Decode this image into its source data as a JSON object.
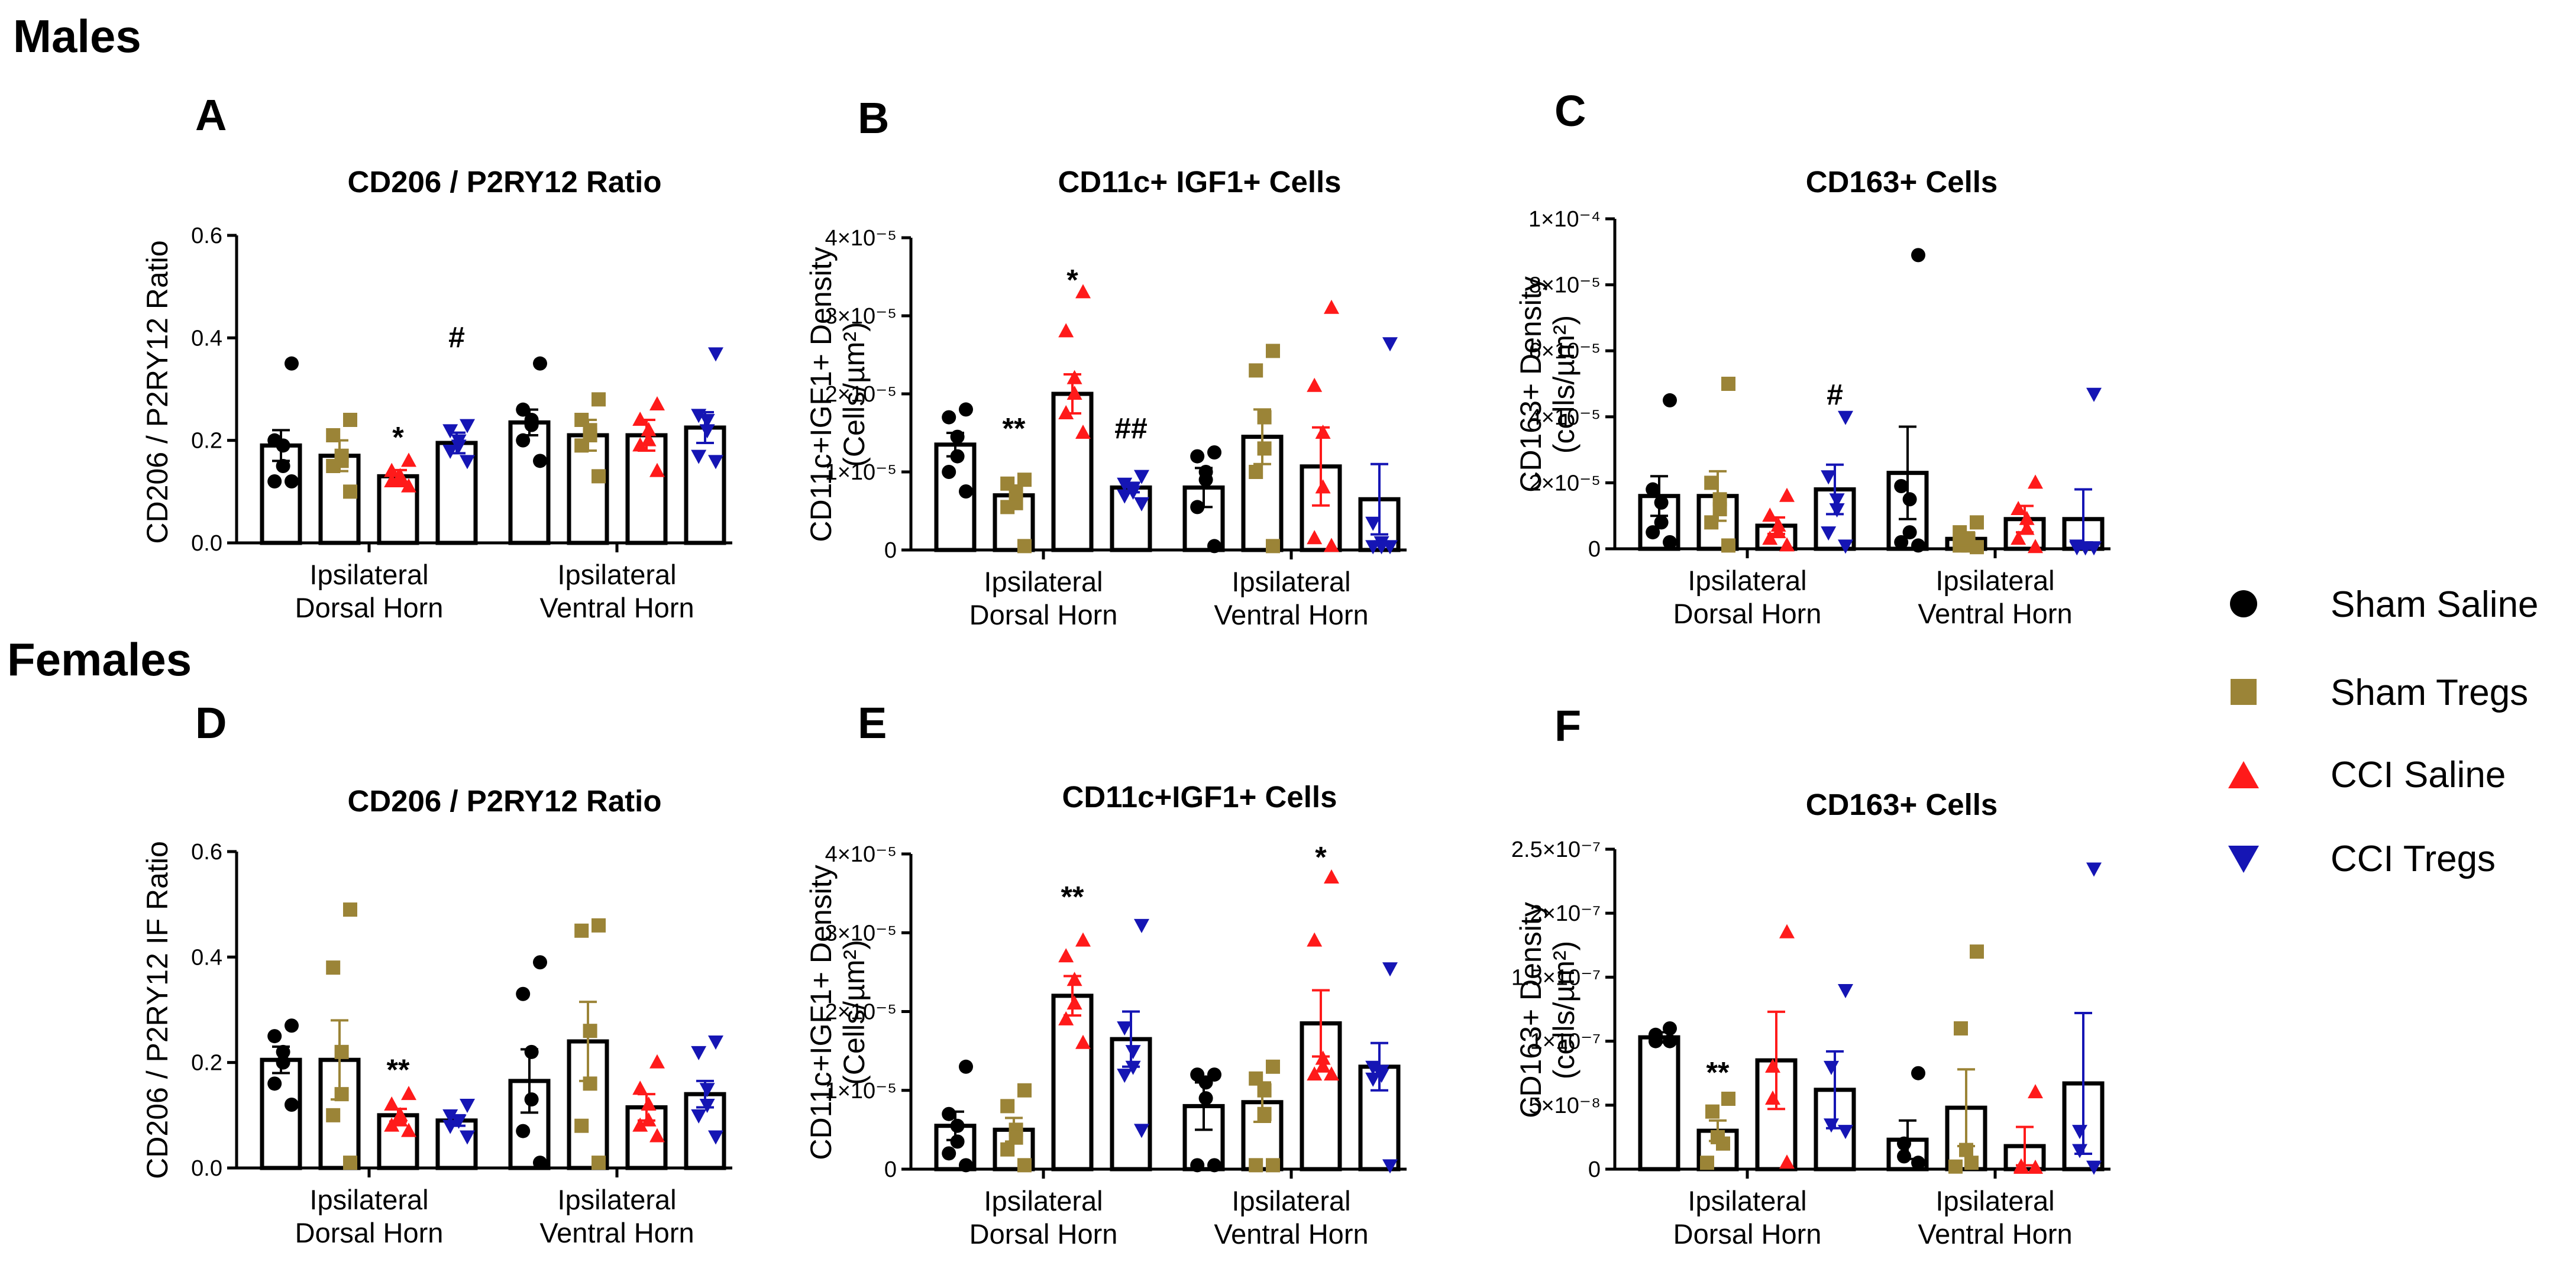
{
  "sections": {
    "males": "Males",
    "females": "Females"
  },
  "legend": [
    {
      "label": "Sham Saline",
      "color": "#000000",
      "marker": "circle"
    },
    {
      "label": "Sham Tregs",
      "color": "#9b8437",
      "marker": "square"
    },
    {
      "label": "CCI Saline",
      "color": "#ff1a1a",
      "marker": "triangle-up"
    },
    {
      "label": "CCI Tregs",
      "color": "#1515b4",
      "marker": "triangle-down"
    }
  ],
  "chart_data": [
    {
      "panel": "A",
      "type": "bar",
      "title": "CD206 / P2RY12 Ratio",
      "ylabel": [
        "CD206 / P2RY12 Ratio"
      ],
      "groups": [
        [
          "Ipsilateral",
          "Dorsal Horn"
        ],
        [
          "Ipsilateral",
          "Ventral Horn"
        ]
      ],
      "ylim": [
        0,
        0.6
      ],
      "ticks": [
        {
          "v": 0,
          "t": "0.0"
        },
        {
          "v": 0.2,
          "t": "0.2"
        },
        {
          "v": 0.4,
          "t": "0.4"
        },
        {
          "v": 0.6,
          "t": "0.6"
        }
      ],
      "series": [
        {
          "name": "Sham Saline",
          "means": [
            0.19,
            0.235
          ],
          "sem": [
            0.03,
            0.025
          ],
          "points": [
            [
              0.35,
              0.2,
              0.19,
              0.15,
              0.12,
              0.12
            ],
            [
              0.35,
              0.26,
              0.24,
              0.23,
              0.2,
              0.16
            ]
          ]
        },
        {
          "name": "Sham Tregs",
          "means": [
            0.17,
            0.21
          ],
          "sem": [
            0.03,
            0.03
          ],
          "points": [
            [
              0.24,
              0.21,
              0.17,
              0.16,
              0.15,
              0.1
            ],
            [
              0.28,
              0.24,
              0.22,
              0.21,
              0.19,
              0.13
            ]
          ]
        },
        {
          "name": "CCI Saline",
          "means": [
            0.13,
            0.21
          ],
          "sem": [
            0.012,
            0.03
          ],
          "points": [
            [
              0.16,
              0.14,
              0.13,
              0.12,
              0.12,
              0.11
            ],
            [
              0.27,
              0.24,
              0.22,
              0.2,
              0.19,
              0.14
            ]
          ]
        },
        {
          "name": "CCI Tregs",
          "means": [
            0.195,
            0.225
          ],
          "sem": [
            0.02,
            0.03
          ],
          "points": [
            [
              0.23,
              0.22,
              0.2,
              0.19,
              0.18,
              0.16
            ],
            [
              0.37,
              0.25,
              0.24,
              0.22,
              0.17,
              0.16
            ]
          ]
        }
      ],
      "annotations": [
        {
          "group": 0,
          "series": 2,
          "text": "*",
          "y": 0.205
        },
        {
          "group": 0,
          "series": 3,
          "text": "#",
          "y": 0.4
        }
      ]
    },
    {
      "panel": "B",
      "type": "bar",
      "title": "CD11c+ IGF1+ Cells",
      "ylabel": [
        "CD11c+IGF1+ Density",
        "(Cells/µm²)"
      ],
      "groups": [
        [
          "Ipsilateral",
          "Dorsal Horn"
        ],
        [
          "Ipsilateral",
          "Ventral Horn"
        ]
      ],
      "ylim": [
        0,
        4e-05
      ],
      "ticks": [
        {
          "v": 0,
          "t": "0"
        },
        {
          "v": 1e-05,
          "t": "1×10⁻⁵"
        },
        {
          "v": 2e-05,
          "t": "2×10⁻⁵"
        },
        {
          "v": 3e-05,
          "t": "3×10⁻⁵"
        },
        {
          "v": 4e-05,
          "t": "4×10⁻⁵"
        }
      ],
      "series": [
        {
          "name": "Sham Saline",
          "means": [
            1.35e-05,
            8e-06
          ],
          "sem": [
            1.5e-06,
            2.5e-06
          ],
          "points": [
            [
              1.8e-05,
              1.7e-05,
              1.45e-05,
              1.2e-05,
              1e-05,
              7.5e-06
            ],
            [
              1.25e-05,
              1.2e-05,
              1e-05,
              9e-06,
              5.5e-06,
              5e-07
            ]
          ]
        },
        {
          "name": "Sham Tregs",
          "means": [
            7e-06,
            1.45e-05
          ],
          "sem": [
            8e-07,
            3.5e-06
          ],
          "points": [
            [
              9e-06,
              8.5e-06,
              7.5e-06,
              6e-06,
              5.5e-06,
              5e-07
            ],
            [
              2.55e-05,
              2.3e-05,
              1.7e-05,
              1.3e-05,
              1e-05,
              5e-07
            ]
          ]
        },
        {
          "name": "CCI Saline",
          "means": [
            2e-05,
            1.07e-05
          ],
          "sem": [
            2.5e-06,
            5e-06
          ],
          "points": [
            [
              3.3e-05,
              2.8e-05,
              2.2e-05,
              2e-05,
              1.75e-05,
              1.5e-05
            ],
            [
              3.1e-05,
              2.1e-05,
              1.5e-05,
              8e-06,
              1.5e-06,
              5e-07
            ]
          ]
        },
        {
          "name": "CCI Tregs",
          "means": [
            8e-06,
            6.5e-06
          ],
          "sem": [
            6e-07,
            4.5e-06
          ],
          "points": [
            [
              9.5e-06,
              8.5e-06,
              8e-06,
              7.5e-06,
              7e-06,
              6e-06
            ],
            [
              2.65e-05,
              3.5e-06,
              1e-06,
              5e-07,
              5e-07,
              5e-07
            ]
          ]
        }
      ],
      "annotations": [
        {
          "group": 0,
          "series": 1,
          "text": "**",
          "y": 1.55e-05
        },
        {
          "group": 0,
          "series": 2,
          "text": "*",
          "y": 3.45e-05
        },
        {
          "group": 0,
          "series": 3,
          "text": "##",
          "y": 1.55e-05
        }
      ]
    },
    {
      "panel": "C",
      "type": "bar",
      "title": "CD163+ Cells",
      "ylabel": [
        "CD163+ Density",
        "(cells/µm²)"
      ],
      "groups": [
        [
          "Ipsilateral",
          "Dorsal Horn"
        ],
        [
          "Ipsilateral",
          "Ventral Horn"
        ]
      ],
      "ylim": [
        0,
        0.0001
      ],
      "ticks": [
        {
          "v": 0,
          "t": "0"
        },
        {
          "v": 2e-05,
          "t": "2×10⁻⁵"
        },
        {
          "v": 4e-05,
          "t": "4×10⁻⁵"
        },
        {
          "v": 6e-05,
          "t": "6×10⁻⁵"
        },
        {
          "v": 8e-05,
          "t": "8×10⁻⁵"
        },
        {
          "v": 0.0001,
          "t": "1×10⁻⁴"
        }
      ],
      "series": [
        {
          "name": "Sham Saline",
          "means": [
            1.6e-05,
            2.3e-05
          ],
          "sem": [
            6e-06,
            1.4e-05
          ],
          "points": [
            [
              4.5e-05,
              1.8e-05,
              1.4e-05,
              8e-06,
              5e-06,
              2e-06
            ],
            [
              8.9e-05,
              1.9e-05,
              1.5e-05,
              5e-06,
              2e-06,
              1e-06
            ]
          ]
        },
        {
          "name": "Sham Tregs",
          "means": [
            1.6e-05,
            3e-06
          ],
          "sem": [
            7.5e-06,
            2e-06
          ],
          "points": [
            [
              5e-05,
              2e-05,
              1.5e-05,
              1.2e-05,
              8e-06,
              1e-06
            ],
            [
              8e-06,
              5e-06,
              3e-06,
              1e-06,
              1e-06,
              5e-07
            ]
          ]
        },
        {
          "name": "CCI Saline",
          "means": [
            7e-06,
            9e-06
          ],
          "sem": [
            2.5e-06,
            4e-06
          ],
          "points": [
            [
              1.6e-05,
              1e-05,
              7e-06,
              5e-06,
              3e-06,
              1e-06
            ],
            [
              2e-05,
              1.2e-05,
              9e-06,
              6e-06,
              3e-06,
              5e-07
            ]
          ]
        },
        {
          "name": "CCI Tregs",
          "means": [
            1.8e-05,
            9e-06
          ],
          "sem": [
            7.5e-06,
            9e-06
          ],
          "points": [
            [
              4e-05,
              2.2e-05,
              1.5e-05,
              1.2e-05,
              5e-06,
              1e-06
            ],
            [
              4.7e-05,
              1e-06,
              5e-07,
              5e-07,
              5e-07,
              5e-07
            ]
          ]
        }
      ],
      "annotations": [
        {
          "group": 0,
          "series": 3,
          "text": "#",
          "y": 4.65e-05
        }
      ]
    },
    {
      "panel": "D",
      "type": "bar",
      "title": "CD206 / P2RY12 Ratio",
      "ylabel": [
        "CD206 / P2RY12 IF Ratio"
      ],
      "groups": [
        [
          "Ipsilateral",
          "Dorsal Horn"
        ],
        [
          "Ipsilateral",
          "Ventral Horn"
        ]
      ],
      "ylim": [
        0,
        0.6
      ],
      "ticks": [
        {
          "v": 0,
          "t": "0.0"
        },
        {
          "v": 0.2,
          "t": "0.2"
        },
        {
          "v": 0.4,
          "t": "0.4"
        },
        {
          "v": 0.6,
          "t": "0.6"
        }
      ],
      "series": [
        {
          "name": "Sham Saline",
          "means": [
            0.205,
            0.165
          ],
          "sem": [
            0.025,
            0.06
          ],
          "points": [
            [
              0.27,
              0.25,
              0.22,
              0.2,
              0.16,
              0.12
            ],
            [
              0.39,
              0.33,
              0.22,
              0.13,
              0.07,
              0.01
            ]
          ]
        },
        {
          "name": "Sham Tregs",
          "means": [
            0.205,
            0.24
          ],
          "sem": [
            0.075,
            0.075
          ],
          "points": [
            [
              0.49,
              0.38,
              0.22,
              0.14,
              0.1,
              0.01
            ],
            [
              0.46,
              0.45,
              0.26,
              0.16,
              0.08,
              0.01
            ]
          ]
        },
        {
          "name": "CCI Saline",
          "means": [
            0.1,
            0.115
          ],
          "sem": [
            0.012,
            0.025
          ],
          "points": [
            [
              0.14,
              0.12,
              0.1,
              0.09,
              0.08,
              0.07
            ],
            [
              0.2,
              0.15,
              0.12,
              0.09,
              0.08,
              0.06
            ]
          ]
        },
        {
          "name": "CCI Tregs",
          "means": [
            0.09,
            0.14
          ],
          "sem": [
            0.01,
            0.025
          ],
          "points": [
            [
              0.12,
              0.1,
              0.09,
              0.09,
              0.08,
              0.06
            ],
            [
              0.24,
              0.22,
              0.15,
              0.12,
              0.1,
              0.06
            ]
          ]
        }
      ],
      "annotations": [
        {
          "group": 0,
          "series": 2,
          "text": "**",
          "y": 0.185
        }
      ]
    },
    {
      "panel": "E",
      "type": "bar",
      "title": "CD11c+IGF1+ Cells",
      "ylabel": [
        "CD11c+IGF1+ Density",
        "(Cells/µm²)"
      ],
      "groups": [
        [
          "Ipsilateral",
          "Dorsal Horn"
        ],
        [
          "Ipsilateral",
          "Ventral Horn"
        ]
      ],
      "ylim": [
        0,
        4e-05
      ],
      "ticks": [
        {
          "v": 0,
          "t": "0"
        },
        {
          "v": 1e-05,
          "t": "1×10⁻⁵"
        },
        {
          "v": 2e-05,
          "t": "2×10⁻⁵"
        },
        {
          "v": 3e-05,
          "t": "3×10⁻⁵"
        },
        {
          "v": 4e-05,
          "t": "4×10⁻⁵"
        }
      ],
      "series": [
        {
          "name": "Sham Saline",
          "means": [
            5.5e-06,
            8e-06
          ],
          "sem": [
            1.8e-06,
            3e-06
          ],
          "points": [
            [
              1.3e-05,
              7e-06,
              5.5e-06,
              3.5e-06,
              2e-06,
              5e-07
            ],
            [
              1.2e-05,
              1.2e-05,
              1.1e-05,
              9e-06,
              5e-07,
              5e-07
            ]
          ]
        },
        {
          "name": "Sham Tregs",
          "means": [
            5e-06,
            8.5e-06
          ],
          "sem": [
            1.5e-06,
            2.5e-06
          ],
          "points": [
            [
              1e-05,
              8e-06,
              5e-06,
              4e-06,
              2.5e-06,
              5e-07
            ],
            [
              1.3e-05,
              1.15e-05,
              1e-05,
              7e-06,
              5e-07,
              5e-07
            ]
          ]
        },
        {
          "name": "CCI Saline",
          "means": [
            2.2e-05,
            1.85e-05
          ],
          "sem": [
            2.5e-06,
            4.2e-06
          ],
          "points": [
            [
              2.9e-05,
              2.7e-05,
              2.4e-05,
              2.1e-05,
              1.9e-05,
              1.6e-05
            ],
            [
              3.7e-05,
              2.9e-05,
              1.4e-05,
              1.3e-05,
              1.2e-05,
              1.2e-05
            ]
          ]
        },
        {
          "name": "CCI Tregs",
          "means": [
            1.65e-05,
            1.3e-05
          ],
          "sem": [
            3.5e-06,
            3e-06
          ],
          "points": [
            [
              3.1e-05,
              1.8e-05,
              1.5e-05,
              1.3e-05,
              1.2e-05,
              5e-06
            ],
            [
              2.55e-05,
              1.3e-05,
              1.25e-05,
              1.2e-05,
              1.15e-05,
              5e-07
            ]
          ]
        }
      ],
      "annotations": [
        {
          "group": 0,
          "series": 2,
          "text": "**",
          "y": 3.45e-05
        },
        {
          "group": 1,
          "series": 2,
          "text": "*",
          "y": 3.95e-05
        }
      ]
    },
    {
      "panel": "F",
      "type": "bar",
      "title": "CD163+ Cells",
      "ylabel": [
        "CD163+ Density",
        "(cells/µm²)"
      ],
      "groups": [
        [
          "Ipsilateral",
          "Dorsal Horn"
        ],
        [
          "Ipsilateral",
          "Ventral Horn"
        ]
      ],
      "ylim": [
        0,
        2.5e-07
      ],
      "ticks": [
        {
          "v": 0,
          "t": "0"
        },
        {
          "v": 5e-08,
          "t": "5×10⁻⁸"
        },
        {
          "v": 1e-07,
          "t": "1×10⁻⁷"
        },
        {
          "v": 1.5e-07,
          "t": "1.5×10⁻⁷"
        },
        {
          "v": 2e-07,
          "t": "2×10⁻⁷"
        },
        {
          "v": 2.5e-07,
          "t": "2.5×10⁻⁷"
        }
      ],
      "series": [
        {
          "name": "Sham Saline",
          "means": [
            1.03e-07,
            2.3e-08
          ],
          "sem": [
            4e-09,
            1.5e-08
          ],
          "points": [
            [
              1.1e-07,
              1.05e-07,
              1e-07,
              1e-07
            ],
            [
              7.5e-08,
              2e-08,
              1e-08,
              5e-09
            ]
          ]
        },
        {
          "name": "Sham Tregs",
          "means": [
            3e-08,
            4.8e-08
          ],
          "sem": [
            8e-09,
            3e-08
          ],
          "points": [
            [
              5.5e-08,
              4.5e-08,
              2.5e-08,
              2e-08,
              5e-09
            ],
            [
              1.7e-07,
              1.1e-07,
              1.5e-08,
              5e-09,
              2e-09
            ]
          ]
        },
        {
          "name": "CCI Saline",
          "means": [
            8.5e-08,
            1.8e-08
          ],
          "sem": [
            3.8e-08,
            1.5e-08
          ],
          "points": [
            [
              1.85e-07,
              8e-08,
              5.5e-08,
              5e-09
            ],
            [
              6e-08,
              2e-09,
              1e-09,
              1e-09
            ]
          ]
        },
        {
          "name": "CCI Tregs",
          "means": [
            6.2e-08,
            6.7e-08
          ],
          "sem": [
            3e-08,
            5.5e-08
          ],
          "points": [
            [
              1.4e-07,
              8e-08,
              3.5e-08,
              3e-08
            ],
            [
              2.35e-07,
              3e-08,
              1.5e-08,
              2e-09
            ]
          ]
        }
      ],
      "annotations": [
        {
          "group": 0,
          "series": 1,
          "text": "**",
          "y": 7.5e-08
        }
      ]
    }
  ]
}
